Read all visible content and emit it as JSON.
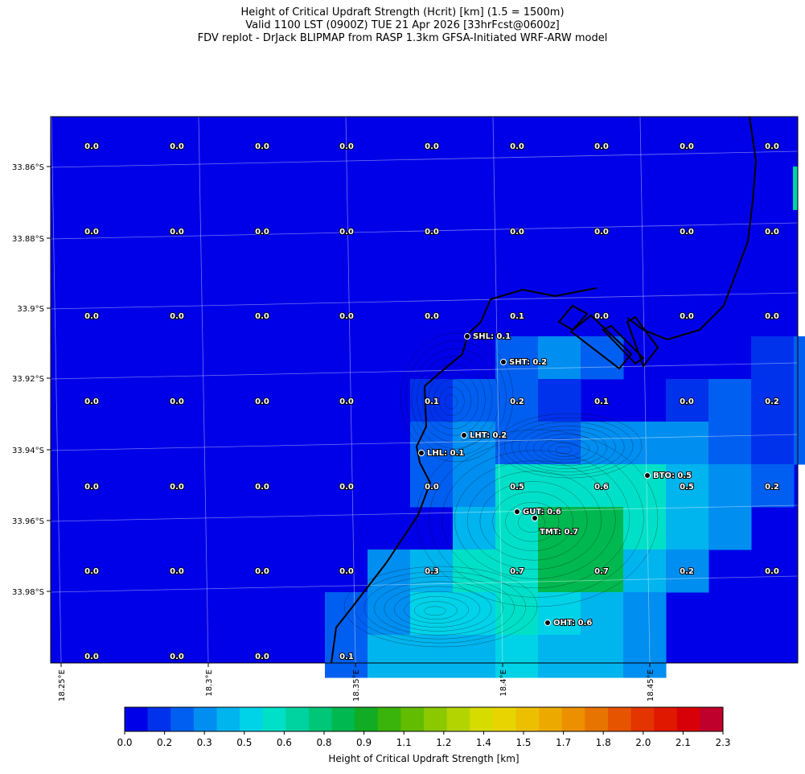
{
  "title_lines": [
    "Height of Critical Updraft Strength (Hcrit) [km] (1.5 = 1500m)",
    "Valid 1100 LST (0900Z) TUE 21 Apr 2026 [33hrFcst@0600z]",
    "FDV replot - DrJack BLIPMAP from RASP 1.3km GFSA-Initiated WRF-ARW model"
  ],
  "lat_ticks": [
    "33.86°S",
    "33.88°S",
    "33.9°S",
    "33.92°S",
    "33.94°S",
    "33.96°S",
    "33.98°S"
  ],
  "lon_ticks": [
    "18.25°E",
    "18.3°E",
    "18.35°E",
    "18.4°E",
    "18.45°E"
  ],
  "grid_values": [
    [
      "0.0",
      "0.0",
      "0.0",
      "0.0",
      "0.0",
      "0.0",
      "0.0",
      "0.0",
      "0.0"
    ],
    [
      "0.0",
      "0.0",
      "0.0",
      "0.0",
      "0.0",
      "0.0",
      "0.0",
      "0.0",
      "0.0"
    ],
    [
      "0.0",
      "0.0",
      "0.0",
      "0.0",
      "0.0",
      "0.1",
      "0.0",
      "0.0",
      "0.0"
    ],
    [
      "0.0",
      "0.0",
      "0.0",
      "0.0",
      "0.1",
      "0.2",
      "0.1",
      "0.0",
      "0.2"
    ],
    [
      "0.0",
      "0.0",
      "0.0",
      "0.0",
      "0.0",
      "0.5",
      "0.6",
      "0.5",
      "0.2"
    ],
    [
      "0.0",
      "0.0",
      "0.0",
      "0.0",
      "0.3",
      "0.7",
      "0.7",
      "0.2",
      "0.0"
    ],
    [
      "0.0",
      "0.0",
      "0.0",
      "0.1",
      "",
      "",
      "",
      "",
      ""
    ]
  ],
  "stations": [
    {
      "label": "SHL: 0.1"
    },
    {
      "label": "SHT: 0.2"
    },
    {
      "label": "LHT: 0.2"
    },
    {
      "label": "LHL: 0.1"
    },
    {
      "label": "BTO: 0.5"
    },
    {
      "label": "GUT: 0.6"
    },
    {
      "label": "TMT: 0.7"
    },
    {
      "label": "OHT: 0.6"
    }
  ],
  "colorbar": {
    "label": "Height of Critical Updraft Strength [km]",
    "tick_labels": [
      "0.0",
      "0.2",
      "0.3",
      "0.5",
      "0.6",
      "0.8",
      "0.9",
      "1.1",
      "1.2",
      "1.4",
      "1.5",
      "1.7",
      "1.8",
      "2.0",
      "2.1",
      "2.3"
    ],
    "colors": [
      "#0000e8",
      "#0032ec",
      "#005ff0",
      "#008ef0",
      "#00b4ee",
      "#00d2e8",
      "#00e0c8",
      "#00d2a0",
      "#00c678",
      "#00b850",
      "#12ac24",
      "#3ab40a",
      "#62bc00",
      "#8cc800",
      "#b4d400",
      "#d6dc00",
      "#e8d400",
      "#ecc000",
      "#ecaa00",
      "#ec9000",
      "#e87400",
      "#e65400",
      "#e43400",
      "#e01800",
      "#d80008",
      "#c0002c"
    ]
  }
}
